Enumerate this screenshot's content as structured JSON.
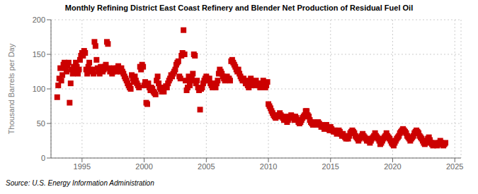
{
  "chart_data": {
    "type": "scatter",
    "title": "Monthly Refining District East Coast Refinery and Blender Net Production of Residual Fuel Oil",
    "y_label": "Thousand Barrels per Day",
    "annotation": "Source: U.S. Energy Information Administration",
    "color": "#cc0000",
    "marker": "square",
    "grid": true,
    "xlim": [
      1992.5,
      2025.5
    ],
    "ylim": [
      0,
      200
    ],
    "xticks": [
      1995,
      2000,
      2005,
      2010,
      2015,
      2020,
      2025
    ],
    "yticks": [
      0,
      50,
      100,
      150,
      200
    ],
    "x": [
      1993.0,
      1993.083,
      1993.167,
      1993.25,
      1993.333,
      1993.417,
      1993.5,
      1993.583,
      1993.667,
      1993.75,
      1993.833,
      1993.917,
      1994.0,
      1994.083,
      1994.167,
      1994.25,
      1994.333,
      1994.417,
      1994.5,
      1994.583,
      1994.667,
      1994.75,
      1994.833,
      1994.917,
      1995.0,
      1995.083,
      1995.167,
      1995.25,
      1995.333,
      1995.417,
      1995.5,
      1995.583,
      1995.667,
      1995.75,
      1995.833,
      1995.917,
      1996.0,
      1996.083,
      1996.167,
      1996.25,
      1996.333,
      1996.417,
      1996.5,
      1996.583,
      1996.667,
      1996.75,
      1996.833,
      1996.917,
      1997.0,
      1997.083,
      1997.167,
      1997.25,
      1997.333,
      1997.417,
      1997.5,
      1997.583,
      1997.667,
      1997.75,
      1997.833,
      1997.917,
      1998.0,
      1998.083,
      1998.167,
      1998.25,
      1998.333,
      1998.417,
      1998.5,
      1998.583,
      1998.667,
      1998.75,
      1998.833,
      1998.917,
      1999.0,
      1999.083,
      1999.167,
      1999.25,
      1999.333,
      1999.417,
      1999.5,
      1999.583,
      1999.667,
      1999.75,
      1999.833,
      1999.917,
      2000.0,
      2000.083,
      2000.167,
      2000.25,
      2000.333,
      2000.417,
      2000.5,
      2000.583,
      2000.667,
      2000.75,
      2000.833,
      2000.917,
      2001.0,
      2001.083,
      2001.167,
      2001.25,
      2001.333,
      2001.417,
      2001.5,
      2001.583,
      2001.667,
      2001.75,
      2001.833,
      2001.917,
      2002.0,
      2002.083,
      2002.167,
      2002.25,
      2002.333,
      2002.417,
      2002.5,
      2002.583,
      2002.667,
      2002.75,
      2002.833,
      2002.917,
      2003.0,
      2003.083,
      2003.167,
      2003.25,
      2003.333,
      2003.417,
      2003.5,
      2003.583,
      2003.667,
      2003.75,
      2003.833,
      2003.917,
      2004.0,
      2004.083,
      2004.167,
      2004.25,
      2004.333,
      2004.417,
      2004.5,
      2004.583,
      2004.667,
      2004.75,
      2004.833,
      2004.917,
      2005.0,
      2005.083,
      2005.167,
      2005.25,
      2005.333,
      2005.417,
      2005.5,
      2005.583,
      2005.667,
      2005.75,
      2005.833,
      2005.917,
      2006.0,
      2006.083,
      2006.167,
      2006.25,
      2006.333,
      2006.417,
      2006.5,
      2006.583,
      2006.667,
      2006.75,
      2006.833,
      2006.917,
      2007.0,
      2007.083,
      2007.167,
      2007.25,
      2007.333,
      2007.417,
      2007.5,
      2007.583,
      2007.667,
      2007.75,
      2007.833,
      2007.917,
      2008.0,
      2008.083,
      2008.167,
      2008.25,
      2008.333,
      2008.417,
      2008.5,
      2008.583,
      2008.667,
      2008.75,
      2008.833,
      2008.917,
      2009.0,
      2009.083,
      2009.167,
      2009.25,
      2009.333,
      2009.417,
      2009.5,
      2009.583,
      2009.667,
      2009.75,
      2009.833,
      2009.917,
      2010.0,
      2010.083,
      2010.167,
      2010.25,
      2010.333,
      2010.417,
      2010.5,
      2010.583,
      2010.667,
      2010.75,
      2010.833,
      2010.917,
      2011.0,
      2011.083,
      2011.167,
      2011.25,
      2011.333,
      2011.417,
      2011.5,
      2011.583,
      2011.667,
      2011.75,
      2011.833,
      2011.917,
      2012.0,
      2012.083,
      2012.167,
      2012.25,
      2012.333,
      2012.417,
      2012.5,
      2012.583,
      2012.667,
      2012.75,
      2012.833,
      2012.917,
      2013.0,
      2013.083,
      2013.167,
      2013.25,
      2013.333,
      2013.417,
      2013.5,
      2013.583,
      2013.667,
      2013.75,
      2013.833,
      2013.917,
      2014.0,
      2014.083,
      2014.167,
      2014.25,
      2014.333,
      2014.417,
      2014.5,
      2014.583,
      2014.667,
      2014.75,
      2014.833,
      2014.917,
      2015.0,
      2015.083,
      2015.167,
      2015.25,
      2015.333,
      2015.417,
      2015.5,
      2015.583,
      2015.667,
      2015.75,
      2015.833,
      2015.917,
      2016.0,
      2016.083,
      2016.167,
      2016.25,
      2016.333,
      2016.417,
      2016.5,
      2016.583,
      2016.667,
      2016.75,
      2016.833,
      2016.917,
      2017.0,
      2017.083,
      2017.167,
      2017.25,
      2017.333,
      2017.417,
      2017.5,
      2017.583,
      2017.667,
      2017.75,
      2017.833,
      2017.917,
      2018.0,
      2018.083,
      2018.167,
      2018.25,
      2018.333,
      2018.417,
      2018.5,
      2018.583,
      2018.667,
      2018.75,
      2018.833,
      2018.917,
      2019.0,
      2019.083,
      2019.167,
      2019.25,
      2019.333,
      2019.417,
      2019.5,
      2019.583,
      2019.667,
      2019.75,
      2019.833,
      2019.917,
      2020.0,
      2020.083,
      2020.167,
      2020.25,
      2020.333,
      2020.417,
      2020.5,
      2020.583,
      2020.667,
      2020.75,
      2020.833,
      2020.917,
      2021.0,
      2021.083,
      2021.167,
      2021.25,
      2021.333,
      2021.417,
      2021.5,
      2021.583,
      2021.667,
      2021.75,
      2021.833,
      2021.917,
      2022.0,
      2022.083,
      2022.167,
      2022.25,
      2022.333,
      2022.417,
      2022.5,
      2022.583,
      2022.667,
      2022.75,
      2022.833,
      2022.917,
      2023.0,
      2023.083,
      2023.167,
      2023.25,
      2023.333,
      2023.417,
      2023.5,
      2023.583,
      2023.667,
      2023.75,
      2023.833,
      2023.917,
      2024.0,
      2024.083,
      2024.167,
      2024.25
    ],
    "values": [
      88,
      105,
      115,
      130,
      112,
      120,
      135,
      138,
      130,
      125,
      133,
      138,
      80,
      108,
      128,
      122,
      132,
      125,
      138,
      132,
      122,
      128,
      142,
      148,
      152,
      148,
      155,
      152,
      128,
      122,
      132,
      138,
      128,
      125,
      128,
      122,
      168,
      162,
      142,
      130,
      125,
      122,
      132,
      128,
      125,
      128,
      132,
      135,
      168,
      165,
      130,
      125,
      128,
      122,
      125,
      130,
      128,
      125,
      130,
      133,
      128,
      125,
      130,
      125,
      122,
      118,
      115,
      112,
      108,
      105,
      102,
      100,
      120,
      115,
      110,
      118,
      112,
      108,
      105,
      102,
      132,
      128,
      135,
      132,
      105,
      110,
      80,
      78,
      108,
      102,
      98,
      102,
      100,
      96,
      94,
      92,
      112,
      118,
      108,
      102,
      100,
      96,
      102,
      96,
      102,
      104,
      102,
      108,
      112,
      115,
      120,
      118,
      122,
      125,
      128,
      135,
      138,
      140,
      118,
      115,
      148,
      152,
      185,
      150,
      112,
      98,
      102,
      118,
      105,
      112,
      115,
      122,
      150,
      148,
      108,
      112,
      102,
      98,
      70,
      100,
      102,
      108,
      112,
      115,
      118,
      115,
      112,
      115,
      108,
      105,
      102,
      108,
      105,
      102,
      108,
      112,
      122,
      128,
      125,
      122,
      118,
      115,
      112,
      115,
      118,
      115,
      115,
      112,
      140,
      142,
      138,
      135,
      132,
      128,
      125,
      128,
      122,
      118,
      115,
      112,
      115,
      112,
      108,
      108,
      105,
      102,
      112,
      115,
      110,
      108,
      105,
      110,
      112,
      108,
      108,
      105,
      102,
      105,
      108,
      112,
      105,
      102,
      105,
      110,
      78,
      75,
      72,
      68,
      65,
      62,
      60,
      58,
      62,
      60,
      62,
      65,
      62,
      60,
      58,
      55,
      60,
      55,
      52,
      55,
      58,
      60,
      62,
      60,
      58,
      55,
      60,
      58,
      55,
      52,
      50,
      52,
      55,
      58,
      60,
      62,
      68,
      68,
      62,
      60,
      55,
      52,
      50,
      48,
      52,
      50,
      48,
      50,
      52,
      50,
      48,
      45,
      48,
      45,
      42,
      45,
      48,
      45,
      42,
      40,
      45,
      42,
      40,
      38,
      40,
      38,
      35,
      38,
      40,
      38,
      35,
      32,
      35,
      32,
      30,
      28,
      30,
      28,
      32,
      36,
      38,
      40,
      38,
      36,
      32,
      30,
      28,
      25,
      28,
      30,
      32,
      35,
      32,
      30,
      28,
      25,
      28,
      25,
      22,
      25,
      28,
      30,
      32,
      36,
      32,
      30,
      28,
      25,
      20,
      22,
      25,
      28,
      30,
      32,
      36,
      32,
      30,
      28,
      25,
      22,
      20,
      18,
      22,
      25,
      28,
      30,
      32,
      36,
      38,
      40,
      42,
      40,
      38,
      36,
      32,
      30,
      28,
      25,
      28,
      30,
      32,
      36,
      38,
      40,
      38,
      36,
      32,
      30,
      28,
      25,
      22,
      20,
      22,
      25,
      28,
      30,
      26,
      22,
      20,
      18,
      20,
      22,
      20,
      18,
      20,
      22,
      25,
      22,
      20,
      18,
      20,
      22
    ]
  }
}
